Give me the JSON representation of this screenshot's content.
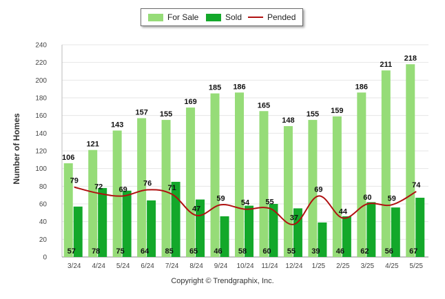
{
  "legend": {
    "for_sale": "For Sale",
    "sold": "Sold",
    "pended": "Pended"
  },
  "copyright": "Copyright © Trendgraphix, Inc.",
  "colors": {
    "for_sale": "#96dc78",
    "sold": "#13a82a",
    "pended": "#b01010",
    "grid": "#e6e6e6"
  },
  "chart_data": {
    "type": "bar",
    "title": "",
    "xlabel": "",
    "ylabel": "Number of Homes",
    "ylim": [
      0,
      240
    ],
    "yticks": [
      0,
      20,
      40,
      60,
      80,
      100,
      120,
      140,
      160,
      180,
      200,
      220,
      240
    ],
    "grid": true,
    "legend_position": "top-center",
    "categories": [
      "3/24",
      "4/24",
      "5/24",
      "6/24",
      "7/24",
      "8/24",
      "9/24",
      "10/24",
      "11/24",
      "12/24",
      "1/25",
      "2/25",
      "3/25",
      "4/25",
      "5/25"
    ],
    "series": [
      {
        "name": "For Sale",
        "kind": "bar",
        "values": [
          106,
          121,
          143,
          157,
          155,
          169,
          185,
          186,
          165,
          148,
          155,
          159,
          186,
          211,
          218
        ]
      },
      {
        "name": "Sold",
        "kind": "bar",
        "values": [
          57,
          78,
          75,
          64,
          85,
          65,
          46,
          58,
          60,
          55,
          39,
          46,
          62,
          56,
          67
        ]
      },
      {
        "name": "Pended",
        "kind": "line",
        "values": [
          79,
          72,
          69,
          76,
          71,
          47,
          59,
          54,
          55,
          37,
          69,
          44,
          60,
          59,
          74
        ]
      }
    ]
  }
}
